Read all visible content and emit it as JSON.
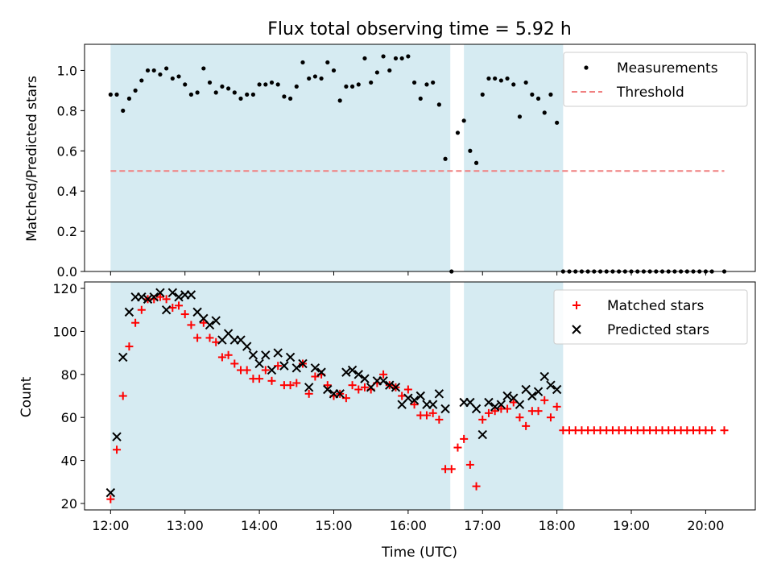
{
  "chart_data": [
    {
      "type": "scatter",
      "title": "Flux total observing time = 5.92 h",
      "xlabel": "",
      "ylabel": "Matched/Predicted stars",
      "xlim": [
        "11:39",
        "20:40"
      ],
      "ylim": [
        0,
        1.13
      ],
      "yticks": [
        "0.0",
        "0.2",
        "0.4",
        "0.6",
        "0.8",
        "1.0"
      ],
      "grid": false,
      "legend": "top-right",
      "shaded_intervals": [
        [
          "12:00",
          "16:34"
        ],
        [
          "16:45",
          "18:05"
        ]
      ],
      "series": [
        {
          "name": "Measurements",
          "marker": "dot",
          "color": "#000000",
          "x": [
            "12:00",
            "12:05",
            "12:10",
            "12:15",
            "12:20",
            "12:25",
            "12:30",
            "12:35",
            "12:40",
            "12:45",
            "12:50",
            "12:55",
            "13:00",
            "13:05",
            "13:10",
            "13:15",
            "13:20",
            "13:25",
            "13:30",
            "13:35",
            "13:40",
            "13:45",
            "13:50",
            "13:55",
            "14:00",
            "14:05",
            "14:10",
            "14:15",
            "14:20",
            "14:25",
            "14:30",
            "14:35",
            "14:40",
            "14:45",
            "14:50",
            "14:55",
            "15:00",
            "15:05",
            "15:10",
            "15:15",
            "15:20",
            "15:25",
            "15:30",
            "15:35",
            "15:40",
            "15:45",
            "15:50",
            "15:55",
            "16:00",
            "16:05",
            "16:10",
            "16:15",
            "16:20",
            "16:25",
            "16:30",
            "16:35",
            "16:40",
            "16:45",
            "16:50",
            "16:55",
            "17:00",
            "17:05",
            "17:10",
            "17:15",
            "17:20",
            "17:25",
            "17:30",
            "17:35",
            "17:40",
            "17:45",
            "17:50",
            "17:55",
            "18:00",
            "18:05",
            "18:10",
            "18:15",
            "18:20",
            "18:25",
            "18:30",
            "18:35",
            "18:40",
            "18:45",
            "18:50",
            "18:55",
            "19:00",
            "19:05",
            "19:10",
            "19:15",
            "19:20",
            "19:25",
            "19:30",
            "19:35",
            "19:40",
            "19:45",
            "19:50",
            "19:55",
            "20:00",
            "20:05",
            "20:15"
          ],
          "values": [
            0.88,
            0.88,
            0.8,
            0.86,
            0.9,
            0.95,
            1.0,
            1.0,
            0.98,
            1.01,
            0.96,
            0.97,
            0.93,
            0.88,
            0.89,
            1.01,
            0.94,
            0.89,
            0.92,
            0.91,
            0.89,
            0.86,
            0.88,
            0.88,
            0.93,
            0.93,
            0.94,
            0.93,
            0.87,
            0.86,
            0.92,
            1.04,
            0.96,
            0.97,
            0.96,
            1.04,
            1.0,
            0.85,
            0.92,
            0.92,
            0.93,
            1.06,
            0.94,
            0.99,
            1.07,
            1.0,
            1.06,
            1.06,
            1.07,
            0.94,
            0.86,
            0.93,
            0.94,
            0.83,
            0.56,
            0.0,
            0.69,
            0.75,
            0.6,
            0.54,
            0.88,
            0.96,
            0.96,
            0.95,
            0.96,
            0.93,
            0.77,
            0.94,
            0.88,
            0.86,
            0.79,
            0.88,
            0.74,
            0.0,
            0.0,
            0.0,
            0.0,
            0.0,
            0.0,
            0.0,
            0.0,
            0.0,
            0.0,
            0.0,
            0.0,
            0.0,
            0.0,
            0.0,
            0.0,
            0.0,
            0.0,
            0.0,
            0.0,
            0.0,
            0.0,
            0.0,
            0.0,
            0.0,
            0.0
          ]
        },
        {
          "name": "Threshold",
          "type": "line",
          "style": "dashed",
          "color": "#f08080",
          "x": [
            "12:00",
            "20:15"
          ],
          "values": [
            0.5,
            0.5
          ]
        }
      ]
    },
    {
      "type": "scatter",
      "title": "",
      "xlabel": "Time (UTC)",
      "ylabel": "Count",
      "xlim": [
        "11:39",
        "20:40"
      ],
      "ylim": [
        17,
        123
      ],
      "yticks": [
        "20",
        "40",
        "60",
        "80",
        "100",
        "120"
      ],
      "xticks": [
        "12:00",
        "13:00",
        "14:00",
        "15:00",
        "16:00",
        "17:00",
        "18:00",
        "19:00",
        "20:00"
      ],
      "grid": false,
      "legend": "top-right",
      "shaded_intervals": [
        [
          "12:00",
          "16:34"
        ],
        [
          "16:45",
          "18:05"
        ]
      ],
      "series": [
        {
          "name": "Matched stars",
          "marker": "plus",
          "color": "#ff0000",
          "x": [
            "12:00",
            "12:05",
            "12:10",
            "12:15",
            "12:20",
            "12:25",
            "12:30",
            "12:35",
            "12:40",
            "12:45",
            "12:50",
            "12:55",
            "13:00",
            "13:05",
            "13:10",
            "13:15",
            "13:20",
            "13:25",
            "13:30",
            "13:35",
            "13:40",
            "13:45",
            "13:50",
            "13:55",
            "14:00",
            "14:05",
            "14:10",
            "14:15",
            "14:20",
            "14:25",
            "14:30",
            "14:35",
            "14:40",
            "14:45",
            "14:50",
            "14:55",
            "15:00",
            "15:05",
            "15:10",
            "15:15",
            "15:20",
            "15:25",
            "15:30",
            "15:35",
            "15:40",
            "15:45",
            "15:50",
            "15:55",
            "16:00",
            "16:05",
            "16:10",
            "16:15",
            "16:20",
            "16:25",
            "16:30",
            "16:35",
            "16:40",
            "16:45",
            "16:50",
            "16:55",
            "17:00",
            "17:05",
            "17:10",
            "17:15",
            "17:20",
            "17:25",
            "17:30",
            "17:35",
            "17:40",
            "17:45",
            "17:50",
            "17:55",
            "18:00",
            "18:05",
            "18:10",
            "18:15",
            "18:20",
            "18:25",
            "18:30",
            "18:35",
            "18:40",
            "18:45",
            "18:50",
            "18:55",
            "19:00",
            "19:05",
            "19:10",
            "19:15",
            "19:20",
            "19:25",
            "19:30",
            "19:35",
            "19:40",
            "19:45",
            "19:50",
            "19:55",
            "20:00",
            "20:05",
            "20:15"
          ],
          "values": [
            22,
            45,
            70,
            93,
            104,
            110,
            115,
            115,
            116,
            115,
            111,
            112,
            108,
            103,
            97,
            104,
            97,
            95,
            88,
            89,
            85,
            82,
            82,
            78,
            78,
            82,
            77,
            84,
            75,
            75,
            76,
            85,
            71,
            79,
            80,
            75,
            70,
            71,
            69,
            75,
            73,
            74,
            73,
            76,
            80,
            75,
            74,
            70,
            73,
            66,
            61,
            61,
            62,
            59,
            36,
            36,
            46,
            50,
            38,
            28,
            59,
            62,
            63,
            64,
            64,
            67,
            60,
            56,
            63,
            63,
            68,
            60,
            65,
            54,
            54,
            54,
            54,
            54,
            54,
            54,
            54,
            54,
            54,
            54,
            54,
            54,
            54,
            54,
            54,
            54,
            54,
            54,
            54,
            54,
            54,
            54,
            54,
            54,
            54
          ]
        },
        {
          "name": "Predicted stars",
          "marker": "x",
          "color": "#000000",
          "x": [
            "12:00",
            "12:05",
            "12:10",
            "12:15",
            "12:20",
            "12:25",
            "12:30",
            "12:35",
            "12:40",
            "12:45",
            "12:50",
            "12:55",
            "13:00",
            "13:05",
            "13:10",
            "13:15",
            "13:20",
            "13:25",
            "13:30",
            "13:35",
            "13:40",
            "13:45",
            "13:50",
            "13:55",
            "14:00",
            "14:05",
            "14:10",
            "14:15",
            "14:20",
            "14:25",
            "14:30",
            "14:35",
            "14:40",
            "14:45",
            "14:50",
            "14:55",
            "15:00",
            "15:05",
            "15:10",
            "15:15",
            "15:20",
            "15:25",
            "15:30",
            "15:35",
            "15:40",
            "15:45",
            "15:50",
            "15:55",
            "16:00",
            "16:05",
            "16:10",
            "16:15",
            "16:20",
            "16:25",
            "16:30",
            "16:45",
            "16:50",
            "16:55",
            "17:00",
            "17:05",
            "17:10",
            "17:15",
            "17:20",
            "17:25",
            "17:30",
            "17:35",
            "17:40",
            "17:45",
            "17:50",
            "17:55",
            "18:00"
          ],
          "values": [
            25,
            51,
            88,
            109,
            116,
            116,
            115,
            116,
            118,
            110,
            118,
            116,
            117,
            117,
            109,
            106,
            103,
            105,
            96,
            99,
            96,
            96,
            93,
            89,
            85,
            89,
            82,
            90,
            84,
            88,
            83,
            85,
            74,
            83,
            81,
            73,
            71,
            71,
            81,
            82,
            80,
            78,
            74,
            77,
            77,
            75,
            74,
            66,
            69,
            68,
            70,
            66,
            66,
            71,
            64,
            67,
            67,
            64,
            52,
            67,
            65,
            66,
            70,
            69,
            66,
            73,
            70,
            72,
            79,
            75,
            73
          ]
        }
      ]
    }
  ]
}
